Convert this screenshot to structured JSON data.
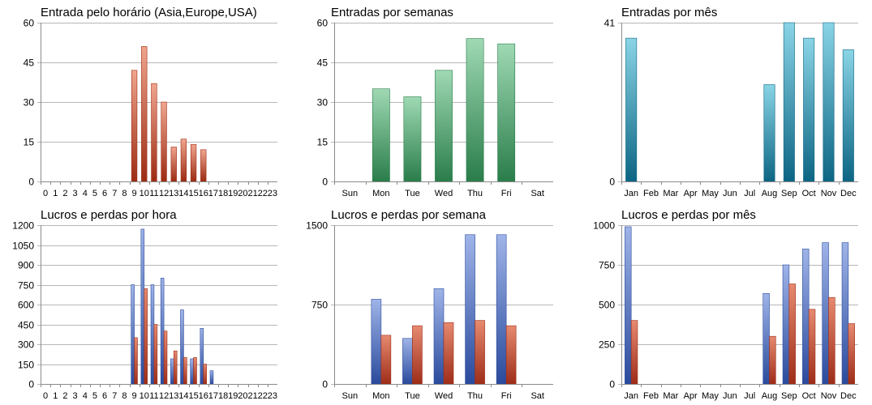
{
  "colors": {
    "orange_top": "#f0a58e",
    "orange_bottom": "#9c2c13",
    "green_top": "#9fd9b4",
    "green_bottom": "#2a7d4a",
    "teal_top": "#8ad4e6",
    "teal_bottom": "#0c6583",
    "blue_top": "#9fb4e8",
    "blue_bottom": "#2a4a9c",
    "red_top": "#e68a70",
    "red_bottom": "#9e2d18",
    "grid": "#b7b7b7"
  },
  "chart_data": [
    {
      "type": "bar",
      "title": "Entrada pelo horário (Asia,Europe,USA)",
      "categories": [
        "0",
        "1",
        "2",
        "3",
        "4",
        "5",
        "6",
        "7",
        "8",
        "9",
        "10",
        "11",
        "12",
        "13",
        "14",
        "15",
        "16",
        "17",
        "18",
        "19",
        "20",
        "21",
        "22",
        "23"
      ],
      "yticks": [
        "0",
        "15",
        "30",
        "45",
        "60"
      ],
      "ylim": [
        0,
        60
      ],
      "palette": "orange",
      "grid": true,
      "series": [
        {
          "values": [
            0,
            0,
            0,
            0,
            0,
            0,
            0,
            0,
            0,
            42,
            51,
            37,
            30,
            13,
            16,
            14,
            12,
            0,
            0,
            0,
            0,
            0,
            0,
            0
          ]
        }
      ]
    },
    {
      "type": "bar",
      "title": "Entradas por semanas",
      "categories": [
        "Sun",
        "Mon",
        "Tue",
        "Wed",
        "Thu",
        "Fri",
        "Sat"
      ],
      "yticks": [
        "0",
        "15",
        "30",
        "45",
        "60"
      ],
      "ylim": [
        0,
        60
      ],
      "palette": "green",
      "grid": true,
      "series": [
        {
          "values": [
            0,
            35,
            32,
            42,
            54,
            52,
            0
          ]
        }
      ]
    },
    {
      "type": "bar",
      "title": "Entradas por mês",
      "categories": [
        "Jan",
        "Feb",
        "Mar",
        "Apr",
        "May",
        "Jun",
        "Jul",
        "Aug",
        "Sep",
        "Oct",
        "Nov",
        "Dec"
      ],
      "yticks": [
        "0",
        "41"
      ],
      "ylim": [
        0,
        41
      ],
      "palette": "teal",
      "grid": true,
      "series": [
        {
          "values": [
            37,
            0,
            0,
            0,
            0,
            0,
            0,
            25,
            41,
            37,
            41,
            34
          ]
        }
      ]
    },
    {
      "type": "bar",
      "title": "Lucros e perdas por hora",
      "categories": [
        "0",
        "1",
        "2",
        "3",
        "4",
        "5",
        "6",
        "7",
        "8",
        "9",
        "10",
        "11",
        "12",
        "13",
        "14",
        "15",
        "16",
        "17",
        "18",
        "19",
        "20",
        "21",
        "22",
        "23"
      ],
      "yticks": [
        "0",
        "150",
        "300",
        "450",
        "600",
        "750",
        "900",
        "1050",
        "1200"
      ],
      "ylim": [
        0,
        1200
      ],
      "palette": "pair",
      "grid": true,
      "series": [
        {
          "values": [
            0,
            0,
            0,
            0,
            0,
            0,
            0,
            0,
            0,
            750,
            1170,
            750,
            800,
            190,
            560,
            190,
            420,
            100,
            0,
            0,
            0,
            0,
            0,
            0
          ]
        },
        {
          "values": [
            0,
            0,
            0,
            0,
            0,
            0,
            0,
            0,
            0,
            350,
            720,
            450,
            400,
            250,
            200,
            200,
            150,
            0,
            0,
            0,
            0,
            0,
            0,
            0
          ]
        }
      ]
    },
    {
      "type": "bar",
      "title": "Lucros e perdas por semana",
      "categories": [
        "Sun",
        "Mon",
        "Tue",
        "Wed",
        "Thu",
        "Fri",
        "Sat"
      ],
      "yticks": [
        "0",
        "750",
        "1500"
      ],
      "ylim": [
        0,
        1500
      ],
      "palette": "pair",
      "grid": true,
      "series": [
        {
          "values": [
            0,
            800,
            430,
            900,
            1410,
            1410,
            0
          ]
        },
        {
          "values": [
            0,
            460,
            550,
            580,
            600,
            550,
            0
          ]
        }
      ]
    },
    {
      "type": "bar",
      "title": "Lucros e perdas por mês",
      "categories": [
        "Jan",
        "Feb",
        "Mar",
        "Apr",
        "May",
        "Jun",
        "Jul",
        "Aug",
        "Sep",
        "Oct",
        "Nov",
        "Dec"
      ],
      "yticks": [
        "0",
        "250",
        "500",
        "750",
        "1000"
      ],
      "ylim": [
        0,
        1000
      ],
      "palette": "pair",
      "grid": true,
      "series": [
        {
          "values": [
            990,
            0,
            0,
            0,
            0,
            0,
            0,
            570,
            750,
            850,
            890,
            890
          ]
        },
        {
          "values": [
            400,
            0,
            0,
            0,
            0,
            0,
            0,
            300,
            630,
            470,
            545,
            380
          ]
        }
      ]
    }
  ]
}
